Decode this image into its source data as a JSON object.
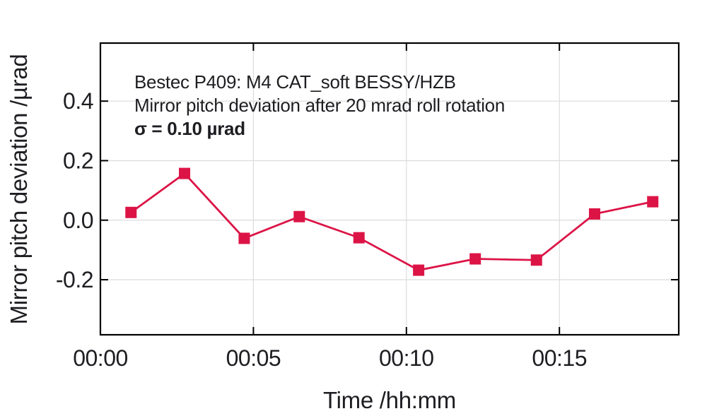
{
  "figure": {
    "background": "#ffffff"
  },
  "colors": {
    "series": "#dc1446",
    "frame": "#000000",
    "grid": "#dcdcdc",
    "text": "#1e1e22"
  },
  "chart_data": {
    "type": "line",
    "annotation_lines": [
      {
        "text": "Bestec P409: M4 CAT_soft BESSY/HZB",
        "bold": false
      },
      {
        "text": "Mirror pitch deviation after 20 mrad roll rotation",
        "bold": false
      },
      {
        "text": "σ = 0.10 µrad",
        "bold": true
      }
    ],
    "sigma_label": "σ = 0.10 µrad",
    "xlabel": "Time /hh:mm",
    "ylabel": "Mirror pitch deviation /µrad",
    "grid": true,
    "legend": "none",
    "xlim_minutes": [
      0,
      18.9
    ],
    "ylim": [
      -0.385,
      0.595
    ],
    "x_ticks": [
      {
        "minutes": 0,
        "label": "00:00"
      },
      {
        "minutes": 5,
        "label": "00:05"
      },
      {
        "minutes": 10,
        "label": "00:10"
      },
      {
        "minutes": 15,
        "label": "00:15"
      }
    ],
    "y_ticks": [
      {
        "value": 0.4,
        "label": "0.4"
      },
      {
        "value": 0.2,
        "label": "0.2"
      },
      {
        "value": 0.0,
        "label": "0.0"
      },
      {
        "value": -0.2,
        "label": "-0.2"
      }
    ],
    "series": [
      {
        "name": "mirror-pitch-deviation",
        "marker": "square",
        "color": "#dc1446",
        "points": [
          {
            "t_minutes": 1.0,
            "value": 0.026
          },
          {
            "t_minutes": 2.75,
            "value": 0.157
          },
          {
            "t_minutes": 4.7,
            "value": -0.061
          },
          {
            "t_minutes": 6.5,
            "value": 0.012
          },
          {
            "t_minutes": 8.45,
            "value": -0.059
          },
          {
            "t_minutes": 10.4,
            "value": -0.168
          },
          {
            "t_minutes": 12.25,
            "value": -0.13
          },
          {
            "t_minutes": 14.25,
            "value": -0.134
          },
          {
            "t_minutes": 16.15,
            "value": 0.021
          },
          {
            "t_minutes": 18.05,
            "value": 0.062
          }
        ]
      }
    ]
  }
}
